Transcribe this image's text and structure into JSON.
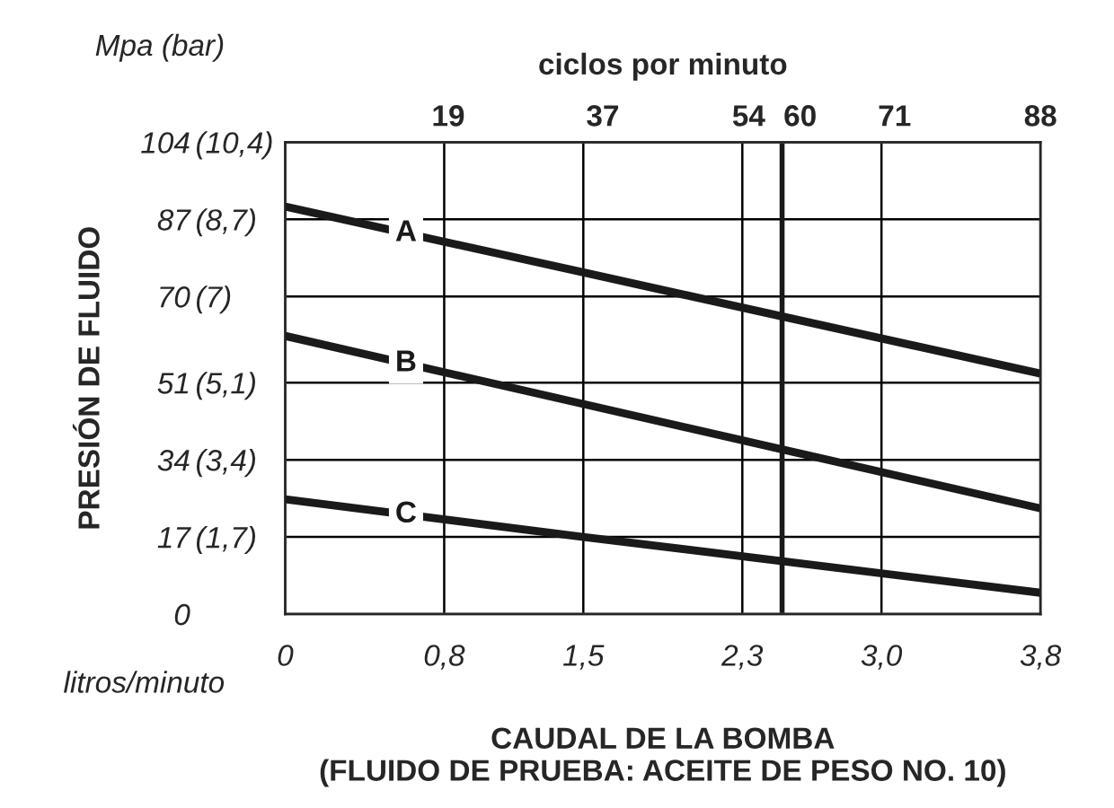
{
  "chart_data": {
    "type": "line",
    "xlabel": "CAUDAL DE LA BOMBA\n(FLUIDO DE PRUEBA: ACEITE DE PESO NO. 10)",
    "ylabel": "PRESIÓN DE FLUIDO",
    "x2label": "ciclos por minuto",
    "annotations": [
      "Mpa (bar)",
      "litros/minuto"
    ],
    "x": [
      0,
      1.5,
      3.8
    ],
    "series": [
      {
        "name": "A",
        "color": "#1a1a1a",
        "values": [
          89.8,
          75.3,
          53
        ]
      },
      {
        "name": "B",
        "color": "#1a1a1a",
        "values": [
          61.3,
          46.3,
          23.3
        ]
      },
      {
        "name": "C",
        "color": "#1a1a1a",
        "values": [
          25.3,
          17,
          4.7
        ]
      }
    ],
    "xlim": [
      0,
      3.8
    ],
    "xticks": [
      0,
      {
        "value": 0.8,
        "label": "0,8"
      },
      {
        "value": 1.5,
        "label": "1,5"
      },
      {
        "value": 2.3,
        "label": "2,3"
      },
      {
        "value": 3.0,
        "label": "3,0"
      },
      {
        "value": 3.8,
        "label": "3,8"
      }
    ],
    "x2lim": [
      0,
      88
    ],
    "x2ticks": [
      19,
      37,
      54,
      60,
      71,
      88
    ],
    "ylim": [
      0,
      104
    ],
    "yticks": [
      0,
      17,
      34,
      51,
      70,
      87,
      104
    ],
    "y2lim": [
      0,
      10.4
    ],
    "y2ticks": [
      {
        "value": 1.7,
        "label": "(1,7)"
      },
      {
        "value": 3.4,
        "label": "(3,4)"
      },
      {
        "value": 5.1,
        "label": "(5,1)"
      },
      {
        "value": 7,
        "label": "(7)"
      },
      {
        "value": 8.7,
        "label": "(8,7)"
      },
      {
        "value": 10.4,
        "label": "(10,4)"
      }
    ],
    "ref_lines": [
      {
        "axis": "x",
        "value": 2.5,
        "color": "#1a1a1a",
        "line_style": "solid"
      }
    ],
    "grid": true,
    "legend": false,
    "marker": "none",
    "line_style": "solid"
  }
}
